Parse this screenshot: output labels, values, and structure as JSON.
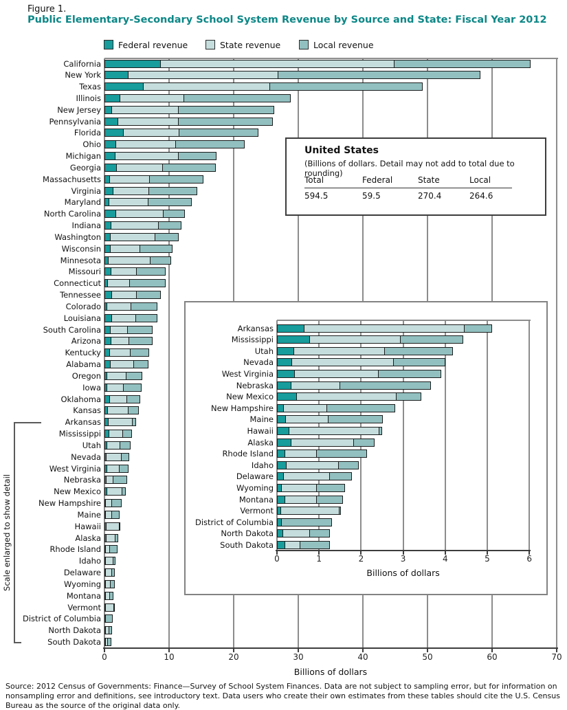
{
  "figure_label": "Figure 1.",
  "title": "Public Elementary-Secondary School System Revenue by Source and State: Fiscal Year 2012",
  "side_note": "Scale enlarged to show detail",
  "source": "Source: 2012 Census of Governments: Finance—Survey of School System Finances. Data are not subject to sampling error, but for information on nonsampling error and definitions, see introductory text. Data users who create their own estimates from these tables should cite the U.S. Census Bureau as the source of the original data only.",
  "colors": {
    "title_teal": "#0d8787",
    "federal": "#189c9c",
    "state": "#c5dddd",
    "local": "#92c0c0",
    "bar_border": "#1b1b1b",
    "gridline": "#8c8c8c"
  },
  "legend": [
    {
      "label": "Federal revenue",
      "color_key": "federal"
    },
    {
      "label": "State revenue",
      "color_key": "state"
    },
    {
      "label": "Local revenue",
      "color_key": "local"
    }
  ],
  "us_box": {
    "title": "United States",
    "subtitle": "(Billions of dollars. Detail may not add to total due to rounding)",
    "columns": [
      "Total",
      "Federal",
      "State",
      "Local"
    ],
    "values": [
      "594.5",
      "59.5",
      "270.4",
      "264.6"
    ]
  },
  "chart_data": {
    "type": "bar",
    "stacked": true,
    "orientation": "horizontal",
    "series_names": [
      "Federal revenue",
      "State revenue",
      "Local revenue"
    ],
    "main": {
      "xlabel": "Billions of dollars",
      "xlim": [
        0,
        70
      ],
      "xticks": [
        0,
        10,
        20,
        30,
        40,
        50,
        60,
        70
      ],
      "grid": true,
      "states": [
        {
          "name": "California",
          "federal": 8.7,
          "state": 36.3,
          "local": 21.2
        },
        {
          "name": "New York",
          "federal": 3.7,
          "state": 23.3,
          "local": 31.4
        },
        {
          "name": "Texas",
          "federal": 6.1,
          "state": 19.7,
          "local": 23.7
        },
        {
          "name": "Illinois",
          "federal": 2.4,
          "state": 10.0,
          "local": 16.6
        },
        {
          "name": "New Jersey",
          "federal": 1.2,
          "state": 10.4,
          "local": 14.9
        },
        {
          "name": "Pennsylvania",
          "federal": 2.1,
          "state": 9.5,
          "local": 14.7
        },
        {
          "name": "Florida",
          "federal": 3.0,
          "state": 8.7,
          "local": 12.3
        },
        {
          "name": "Ohio",
          "federal": 1.8,
          "state": 9.4,
          "local": 10.7
        },
        {
          "name": "Michigan",
          "federal": 1.7,
          "state": 9.9,
          "local": 6.0
        },
        {
          "name": "Georgia",
          "federal": 1.9,
          "state": 7.3,
          "local": 8.2
        },
        {
          "name": "Massachusetts",
          "federal": 0.8,
          "state": 6.3,
          "local": 8.4
        },
        {
          "name": "Virginia",
          "federal": 1.4,
          "state": 5.6,
          "local": 7.6
        },
        {
          "name": "Maryland",
          "federal": 0.7,
          "state": 6.2,
          "local": 6.8
        },
        {
          "name": "North Carolina",
          "federal": 1.8,
          "state": 7.5,
          "local": 3.4
        },
        {
          "name": "Indiana",
          "federal": 1.1,
          "state": 7.4,
          "local": 3.6
        },
        {
          "name": "Washington",
          "federal": 1.0,
          "state": 7.0,
          "local": 3.7
        },
        {
          "name": "Wisconsin",
          "federal": 0.9,
          "state": 4.7,
          "local": 5.1
        },
        {
          "name": "Minnesota",
          "federal": 0.6,
          "state": 6.6,
          "local": 3.3
        },
        {
          "name": "Missouri",
          "federal": 1.1,
          "state": 4.0,
          "local": 4.6
        },
        {
          "name": "Connecticut",
          "federal": 0.5,
          "state": 3.6,
          "local": 5.6
        },
        {
          "name": "Tennessee",
          "federal": 1.2,
          "state": 3.9,
          "local": 3.8
        },
        {
          "name": "Colorado",
          "federal": 0.4,
          "state": 3.9,
          "local": 4.1
        },
        {
          "name": "Louisiana",
          "federal": 1.2,
          "state": 3.8,
          "local": 3.4
        },
        {
          "name": "South Carolina",
          "federal": 0.9,
          "state": 2.8,
          "local": 4.0
        },
        {
          "name": "Arizona",
          "federal": 1.1,
          "state": 2.8,
          "local": 3.8
        },
        {
          "name": "Kentucky",
          "federal": 0.8,
          "state": 3.3,
          "local": 3.0
        },
        {
          "name": "Alabama",
          "federal": 0.9,
          "state": 3.8,
          "local": 2.3
        },
        {
          "name": "Oregon",
          "federal": 0.4,
          "state": 3.1,
          "local": 2.6
        },
        {
          "name": "Iowa",
          "federal": 0.4,
          "state": 2.7,
          "local": 2.9
        },
        {
          "name": "Oklahoma",
          "federal": 0.8,
          "state": 2.8,
          "local": 2.2
        },
        {
          "name": "Kansas",
          "federal": 0.5,
          "state": 3.3,
          "local": 1.7
        },
        {
          "name": "Arkansas",
          "federal": 0.65,
          "state": 3.83,
          "local": 0.66
        },
        {
          "name": "Mississippi",
          "federal": 0.78,
          "state": 2.18,
          "local": 1.5
        },
        {
          "name": "Utah",
          "federal": 0.4,
          "state": 2.18,
          "local": 1.63
        },
        {
          "name": "Nevada",
          "federal": 0.36,
          "state": 2.43,
          "local": 1.25
        },
        {
          "name": "West Virginia",
          "federal": 0.42,
          "state": 2.02,
          "local": 1.5
        },
        {
          "name": "Nebraska",
          "federal": 0.35,
          "state": 1.17,
          "local": 2.18
        },
        {
          "name": "New Mexico",
          "federal": 0.47,
          "state": 2.39,
          "local": 0.61
        },
        {
          "name": "New Hampshire",
          "federal": 0.16,
          "state": 1.05,
          "local": 1.64
        },
        {
          "name": "Maine",
          "federal": 0.21,
          "state": 1.03,
          "local": 1.31
        },
        {
          "name": "Hawaii",
          "federal": 0.3,
          "state": 2.15,
          "local": 0.09
        },
        {
          "name": "Alaska",
          "federal": 0.35,
          "state": 1.5,
          "local": 0.51
        },
        {
          "name": "Rhode Island",
          "federal": 0.19,
          "state": 0.77,
          "local": 1.22
        },
        {
          "name": "Idaho",
          "federal": 0.23,
          "state": 1.26,
          "local": 0.48
        },
        {
          "name": "Delaware",
          "federal": 0.16,
          "state": 1.11,
          "local": 0.54
        },
        {
          "name": "Wyoming",
          "federal": 0.11,
          "state": 0.85,
          "local": 0.69
        },
        {
          "name": "Montana",
          "federal": 0.19,
          "state": 0.77,
          "local": 0.64
        },
        {
          "name": "Vermont",
          "federal": 0.09,
          "state": 1.41,
          "local": 0.06
        },
        {
          "name": "District of Columbia",
          "federal": 0.12,
          "state": 0,
          "local": 1.21
        },
        {
          "name": "North Dakota",
          "federal": 0.14,
          "state": 0.66,
          "local": 0.49
        },
        {
          "name": "South Dakota",
          "federal": 0.2,
          "state": 0.37,
          "local": 0.72
        }
      ]
    },
    "inset": {
      "xlabel": "Billions of dollars",
      "xlim": [
        0,
        6
      ],
      "xticks": [
        0,
        1,
        2,
        3,
        4,
        5,
        6
      ],
      "grid": true,
      "states": [
        {
          "name": "Arkansas",
          "federal": 0.65,
          "state": 3.83,
          "local": 0.66
        },
        {
          "name": "Mississippi",
          "federal": 0.78,
          "state": 2.18,
          "local": 1.5
        },
        {
          "name": "Utah",
          "federal": 0.4,
          "state": 2.18,
          "local": 1.63
        },
        {
          "name": "Nevada",
          "federal": 0.36,
          "state": 2.43,
          "local": 1.25
        },
        {
          "name": "West Virginia",
          "federal": 0.42,
          "state": 2.02,
          "local": 1.5
        },
        {
          "name": "Nebraska",
          "federal": 0.35,
          "state": 1.17,
          "local": 2.18
        },
        {
          "name": "New Mexico",
          "federal": 0.47,
          "state": 2.39,
          "local": 0.61
        },
        {
          "name": "New Hampshire",
          "federal": 0.16,
          "state": 1.05,
          "local": 1.64
        },
        {
          "name": "Maine",
          "federal": 0.21,
          "state": 1.03,
          "local": 1.31
        },
        {
          "name": "Hawaii",
          "federal": 0.3,
          "state": 2.15,
          "local": 0.09
        },
        {
          "name": "Alaska",
          "federal": 0.35,
          "state": 1.5,
          "local": 0.51
        },
        {
          "name": "Rhode Island",
          "federal": 0.19,
          "state": 0.77,
          "local": 1.22
        },
        {
          "name": "Idaho",
          "federal": 0.23,
          "state": 1.26,
          "local": 0.48
        },
        {
          "name": "Delaware",
          "federal": 0.16,
          "state": 1.11,
          "local": 0.54
        },
        {
          "name": "Wyoming",
          "federal": 0.11,
          "state": 0.85,
          "local": 0.69
        },
        {
          "name": "Montana",
          "federal": 0.19,
          "state": 0.77,
          "local": 0.64
        },
        {
          "name": "Vermont",
          "federal": 0.09,
          "state": 1.41,
          "local": 0.06
        },
        {
          "name": "District of Columbia",
          "federal": 0.12,
          "state": 0,
          "local": 1.21
        },
        {
          "name": "North Dakota",
          "federal": 0.14,
          "state": 0.66,
          "local": 0.49
        },
        {
          "name": "South Dakota",
          "federal": 0.2,
          "state": 0.37,
          "local": 0.72
        }
      ]
    }
  }
}
